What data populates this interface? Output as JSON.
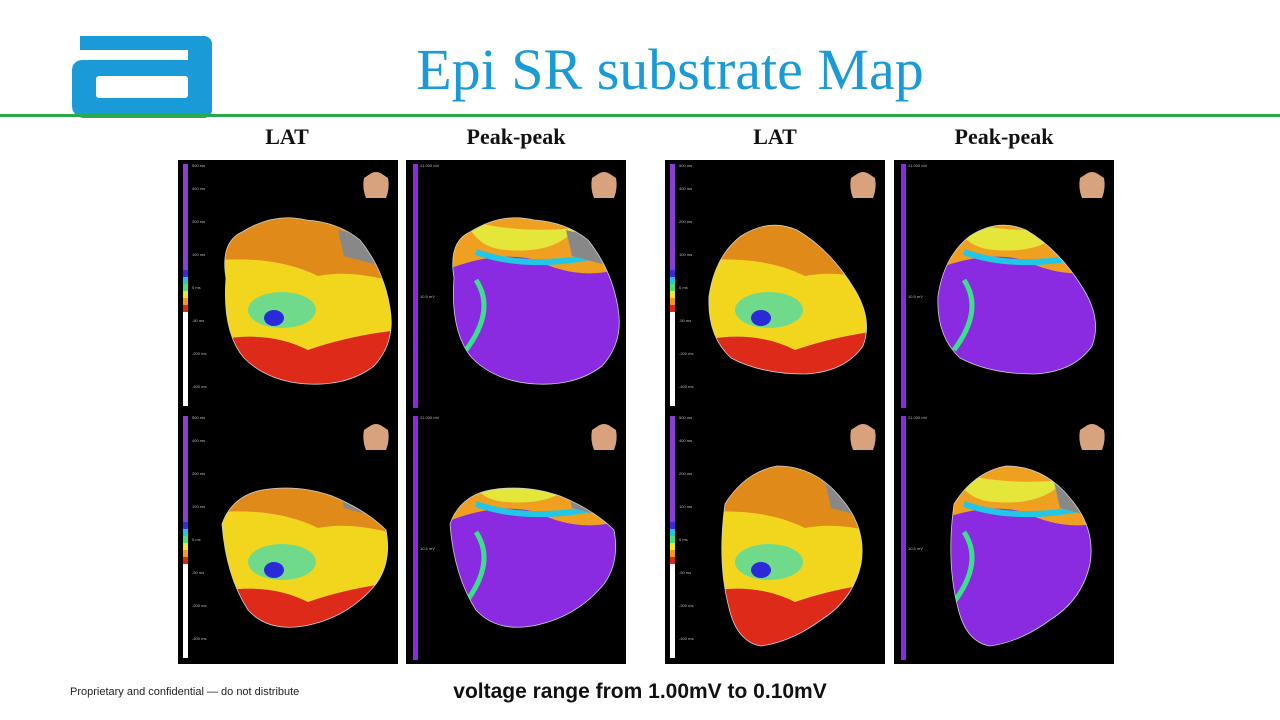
{
  "title": "Epi SR substrate Map",
  "logo": {
    "name": "brand-logo",
    "color": "#1a9ad6"
  },
  "column_labels": [
    "LAT",
    "Peak-peak",
    "LAT",
    "Peak-peak"
  ],
  "panels": [
    {
      "kind": "LAT",
      "colorbar_top": "500 ms",
      "colorbar_ticks": [
        "400 ms",
        "200 ms",
        "100 ms",
        "0 ms",
        "-50 ms",
        "-200 ms",
        "-400 ms"
      ]
    },
    {
      "kind": "Peak-peak",
      "colorbar_top": "21.000 mV",
      "colorbar_ticks": [
        "10.5 mV"
      ]
    },
    {
      "kind": "LAT",
      "colorbar_top": "500 ms",
      "colorbar_ticks": [
        "400 ms",
        "200 ms",
        "100 ms",
        "0 ms",
        "-50 ms",
        "-200 ms",
        "-400 ms"
      ]
    },
    {
      "kind": "Peak-peak",
      "colorbar_top": "21.000 mV",
      "colorbar_ticks": [
        "10.5 mV"
      ]
    },
    {
      "kind": "LAT",
      "colorbar_top": "500 ms",
      "colorbar_ticks": [
        "400 ms",
        "200 ms",
        "100 ms",
        "0 ms",
        "-50 ms",
        "-200 ms",
        "-400 ms"
      ]
    },
    {
      "kind": "Peak-peak",
      "colorbar_top": "21.000 mV",
      "colorbar_ticks": [
        "10.5 mV"
      ]
    },
    {
      "kind": "LAT",
      "colorbar_top": "500 ms",
      "colorbar_ticks": [
        "400 ms",
        "200 ms",
        "100 ms",
        "0 ms",
        "-50 ms",
        "-200 ms",
        "-400 ms"
      ]
    },
    {
      "kind": "Peak-peak",
      "colorbar_top": "21.000 mV",
      "colorbar_ticks": [
        "10.5 mV"
      ]
    }
  ],
  "colors": {
    "lat_bar": [
      "#8a3fd0",
      "#3a2bd6",
      "#22c6e6",
      "#4fe07a",
      "#f2e62a",
      "#f39a1c",
      "#e0241a",
      "#ffffff"
    ],
    "voltage_purple": "#8a2be2"
  },
  "footer": {
    "confidential": "Proprietary and confidential — do not distribute",
    "caption": "voltage range from 1.00mV to 0.10mV"
  }
}
